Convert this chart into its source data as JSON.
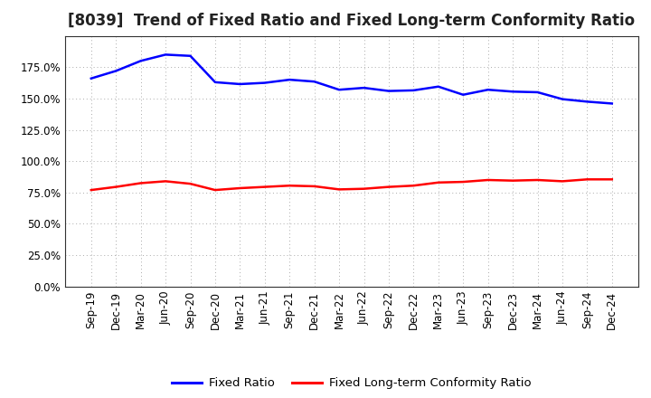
{
  "title": "[8039]  Trend of Fixed Ratio and Fixed Long-term Conformity Ratio",
  "x_labels": [
    "Sep-19",
    "Dec-19",
    "Mar-20",
    "Jun-20",
    "Sep-20",
    "Dec-20",
    "Mar-21",
    "Jun-21",
    "Sep-21",
    "Dec-21",
    "Mar-22",
    "Jun-22",
    "Sep-22",
    "Dec-22",
    "Mar-23",
    "Jun-23",
    "Sep-23",
    "Dec-23",
    "Mar-24",
    "Jun-24",
    "Sep-24",
    "Dec-24"
  ],
  "fixed_ratio": [
    166.0,
    172.0,
    180.0,
    185.0,
    184.0,
    163.0,
    161.5,
    162.5,
    165.0,
    163.5,
    157.0,
    158.5,
    156.0,
    156.5,
    159.5,
    153.0,
    157.0,
    155.5,
    155.0,
    149.5,
    147.5,
    146.0
  ],
  "fixed_lt_ratio": [
    77.0,
    79.5,
    82.5,
    84.0,
    82.0,
    77.0,
    78.5,
    79.5,
    80.5,
    80.0,
    77.5,
    78.0,
    79.5,
    80.5,
    83.0,
    83.5,
    85.0,
    84.5,
    85.0,
    84.0,
    85.5,
    85.5
  ],
  "ylim": [
    0,
    200
  ],
  "yticks": [
    0,
    25,
    50,
    75,
    100,
    125,
    150,
    175
  ],
  "fixed_ratio_color": "#0000FF",
  "fixed_lt_ratio_color": "#FF0000",
  "background_color": "#FFFFFF",
  "plot_bg_color": "#FFFFFF",
  "grid_color": "#AAAAAA",
  "legend_fixed_ratio": "Fixed Ratio",
  "legend_fixed_lt_ratio": "Fixed Long-term Conformity Ratio",
  "title_fontsize": 12,
  "tick_fontsize": 8.5,
  "legend_fontsize": 9.5
}
